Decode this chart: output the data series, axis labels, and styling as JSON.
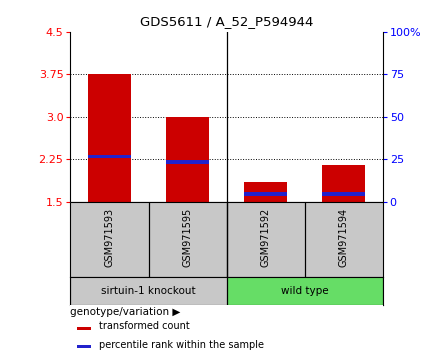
{
  "title": "GDS5611 / A_52_P594944",
  "samples": [
    "GSM971593",
    "GSM971595",
    "GSM971592",
    "GSM971594"
  ],
  "group_labels": [
    "sirtuin-1 knockout",
    "wild type"
  ],
  "bar_bottom": 1.5,
  "transformed_counts": [
    3.75,
    3.0,
    1.85,
    2.15
  ],
  "percentile_ranks": [
    2.3,
    2.2,
    1.63,
    1.63
  ],
  "ylim": [
    1.5,
    4.5
  ],
  "yticks_left": [
    1.5,
    2.25,
    3.0,
    3.75,
    4.5
  ],
  "yticks_right_vals": [
    0,
    25,
    50,
    75,
    100
  ],
  "yticks_right_pos": [
    1.5,
    2.25,
    3.0,
    3.75,
    4.5
  ],
  "hlines": [
    2.25,
    3.0,
    3.75
  ],
  "bar_color_red": "#cc0000",
  "bar_color_blue": "#2222cc",
  "bar_width": 0.55,
  "blue_bar_height": 0.06,
  "group_bg_gray": "#c8c8c8",
  "group_bg_green": "#66dd66",
  "legend_red": "transformed count",
  "legend_blue": "percentile rank within the sample",
  "genotype_label": "genotype/variation",
  "bg_color": "#ffffff"
}
